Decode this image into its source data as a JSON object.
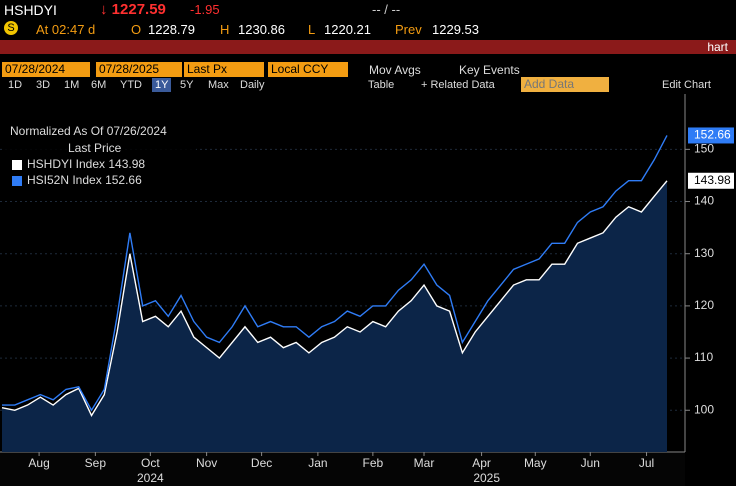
{
  "header": {
    "ticker": "HSHDYI",
    "price": "↓ 1227.59",
    "change": "-1.95",
    "bid_ask": "-- / --",
    "icon": "S",
    "time": "At 02:47 d",
    "open_label": "O",
    "open": "1228.79",
    "high_label": "H",
    "high": "1230.86",
    "low_label": "L",
    "low": "1220.21",
    "prev_label": "Prev",
    "prev": "1229.53",
    "tab": "hart"
  },
  "toolbar": {
    "start_date": "07/28/2024",
    "end_date": "07/28/2025",
    "field": "Last Px",
    "currency": "Local CCY",
    "mov_avgs": "Mov Avgs",
    "key_events": "Key Events",
    "periods": [
      "1D",
      "3D",
      "1M",
      "6M",
      "YTD",
      "1Y",
      "5Y",
      "Max"
    ],
    "active_period": "1Y",
    "frequency": "Daily",
    "table": "Table",
    "related": "+ Related Data",
    "add_data": "Add Data",
    "edit": "Edit Chart"
  },
  "chart_data": {
    "type": "area-line",
    "legend_title": "Normalized As Of 07/26/2024",
    "legend_subtitle": "Last Price",
    "series": [
      {
        "name": "HSHDYI Index",
        "color": "#ffffff",
        "fill": "#0c2548",
        "values": [
          100.5,
          100,
          101,
          102.5,
          101,
          103,
          104.2,
          99,
          103,
          115,
          130,
          117,
          118,
          116,
          119,
          114,
          112,
          110,
          113,
          116,
          113,
          114,
          112,
          113,
          111,
          113,
          114,
          116,
          115,
          117,
          116,
          119,
          121,
          124,
          120,
          119,
          111,
          115,
          118,
          121,
          124,
          125,
          125,
          128,
          128,
          132,
          133,
          134,
          137,
          139,
          138,
          141,
          143.98
        ]
      },
      {
        "name": "HSI52N Index",
        "color": "#2f7cf6",
        "values": [
          101,
          101,
          102,
          103,
          102,
          104,
          104.5,
          100,
          104,
          118,
          134,
          120,
          121,
          118,
          122,
          117,
          114,
          113,
          116,
          120,
          116,
          117,
          116,
          116,
          114,
          116,
          117,
          119,
          118,
          120,
          120,
          123,
          125,
          128,
          124,
          122,
          113,
          117,
          121,
          124,
          127,
          128,
          129,
          132,
          132,
          136,
          138,
          139,
          142,
          144,
          144,
          148,
          152.66
        ]
      }
    ],
    "xlim": [
      0,
      52
    ],
    "xticks": [
      {
        "value": 2.9,
        "label": "Aug"
      },
      {
        "value": 7.3,
        "label": "Sep"
      },
      {
        "value": 11.6,
        "label": "Oct"
      },
      {
        "value": 16,
        "label": "Nov"
      },
      {
        "value": 20.3,
        "label": "Dec"
      },
      {
        "value": 24.7,
        "label": "Jan"
      },
      {
        "value": 29,
        "label": "Feb"
      },
      {
        "value": 33,
        "label": "Mar"
      },
      {
        "value": 37.5,
        "label": "Apr"
      },
      {
        "value": 41.7,
        "label": "May"
      },
      {
        "value": 46,
        "label": "Jun"
      },
      {
        "value": 50.4,
        "label": "Jul"
      }
    ],
    "year_labels": [
      {
        "value": 11.6,
        "label": "2024"
      },
      {
        "value": 37.9,
        "label": "2025"
      }
    ],
    "ylim": [
      92,
      158.5
    ],
    "yticks": [
      100,
      110,
      120,
      130,
      140,
      150
    ],
    "grid": true
  }
}
